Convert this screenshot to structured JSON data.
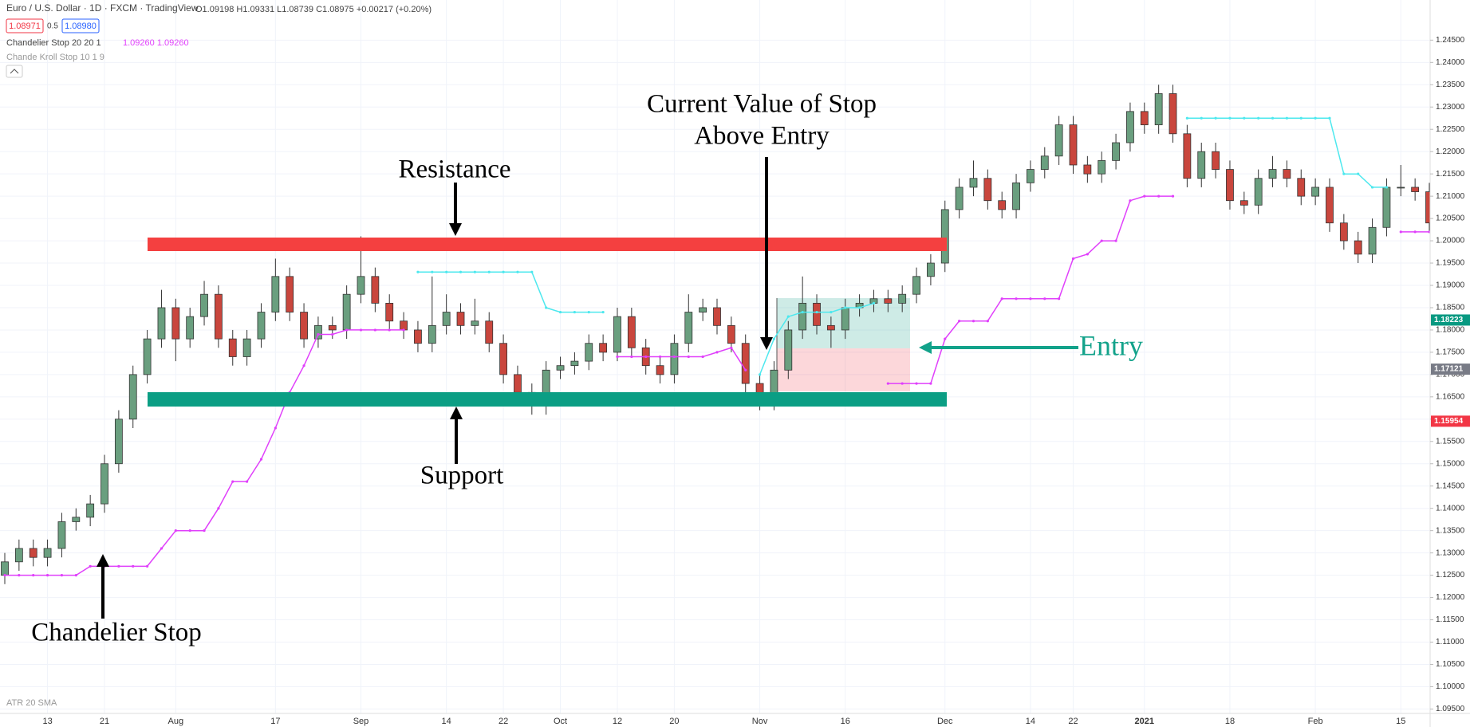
{
  "header": {
    "symbol": "Euro / U.S. Dollar · 1D · FXCM · TradingView",
    "ohlc": "O1.09198 H1.09331 L1.08739 C1.08975 +0.00217 (+0.20%)",
    "bid": "1.08971",
    "spread": "0.5",
    "ask": "1.08980"
  },
  "indicators": [
    "Chandelier Stop 20 20 1",
    "Chande Kroll Stop 10 1 9",
    "ATR 20 SMA"
  ],
  "indicator_values": "1.09260 1.09260",
  "annotations": [
    "Resistance",
    "Support",
    "Current Value of Stop",
    "Above Entry",
    "Entry",
    "Chandelier Stop"
  ],
  "chart_data": {
    "type": "candlestick",
    "up_color": "#6a9f7f",
    "down_color": "#c9463d",
    "grid": true,
    "ylim": [
      1.094,
      1.254
    ],
    "yticks": [
      {
        "value": 1.245,
        "label": "1.24500"
      },
      {
        "value": 1.24,
        "label": "1.24000"
      },
      {
        "value": 1.235,
        "label": "1.23500"
      },
      {
        "value": 1.23,
        "label": "1.23000"
      },
      {
        "value": 1.225,
        "label": "1.22500"
      },
      {
        "value": 1.22,
        "label": "1.22000"
      },
      {
        "value": 1.215,
        "label": "1.21500"
      },
      {
        "value": 1.21,
        "label": "1.21000"
      },
      {
        "value": 1.205,
        "label": "1.20500"
      },
      {
        "value": 1.2,
        "label": "1.20000"
      },
      {
        "value": 1.195,
        "label": "1.19500"
      },
      {
        "value": 1.19,
        "label": "1.19000"
      },
      {
        "value": 1.185,
        "label": "1.18500"
      },
      {
        "value": 1.18,
        "label": "1.18000"
      },
      {
        "value": 1.175,
        "label": "1.17500"
      },
      {
        "value": 1.17,
        "label": "1.17000"
      },
      {
        "value": 1.165,
        "label": "1.16500"
      },
      {
        "value": 1.16,
        "label": "1.16000"
      },
      {
        "value": 1.155,
        "label": "1.15500"
      },
      {
        "value": 1.15,
        "label": "1.15000"
      },
      {
        "value": 1.145,
        "label": "1.14500"
      },
      {
        "value": 1.14,
        "label": "1.14000"
      },
      {
        "value": 1.135,
        "label": "1.13500"
      },
      {
        "value": 1.13,
        "label": "1.13000"
      },
      {
        "value": 1.125,
        "label": "1.12500"
      },
      {
        "value": 1.12,
        "label": "1.12000"
      },
      {
        "value": 1.115,
        "label": "1.11500"
      },
      {
        "value": 1.11,
        "label": "1.11000"
      },
      {
        "value": 1.105,
        "label": "1.10500"
      },
      {
        "value": 1.1,
        "label": "1.10000"
      },
      {
        "value": 1.095,
        "label": "1.09500"
      }
    ],
    "xticks": [
      {
        "value": 3,
        "label": "13"
      },
      {
        "value": 7,
        "label": "21"
      },
      {
        "value": 12,
        "label": "Aug"
      },
      {
        "value": 19,
        "label": "17"
      },
      {
        "value": 25,
        "label": "Sep"
      },
      {
        "value": 31,
        "label": "14"
      },
      {
        "value": 35,
        "label": "22"
      },
      {
        "value": 39,
        "label": "Oct"
      },
      {
        "value": 43,
        "label": "12"
      },
      {
        "value": 47,
        "label": "20"
      },
      {
        "value": 53,
        "label": "Nov"
      },
      {
        "value": 59,
        "label": "16"
      },
      {
        "value": 66,
        "label": "Dec"
      },
      {
        "value": 72,
        "label": "14"
      },
      {
        "value": 75,
        "label": "22"
      },
      {
        "value": 80,
        "label": "2021"
      },
      {
        "value": 86,
        "label": "18"
      },
      {
        "value": 92,
        "label": "Feb"
      },
      {
        "value": 98,
        "label": "15"
      }
    ],
    "candles": [
      [
        1.125,
        1.13,
        1.123,
        1.128
      ],
      [
        1.128,
        1.133,
        1.126,
        1.131
      ],
      [
        1.131,
        1.133,
        1.127,
        1.129
      ],
      [
        1.129,
        1.133,
        1.127,
        1.131
      ],
      [
        1.131,
        1.139,
        1.129,
        1.137
      ],
      [
        1.137,
        1.14,
        1.135,
        1.138
      ],
      [
        1.138,
        1.143,
        1.136,
        1.141
      ],
      [
        1.141,
        1.152,
        1.139,
        1.15
      ],
      [
        1.15,
        1.162,
        1.148,
        1.16
      ],
      [
        1.16,
        1.172,
        1.158,
        1.17
      ],
      [
        1.17,
        1.18,
        1.168,
        1.178
      ],
      [
        1.178,
        1.189,
        1.176,
        1.185
      ],
      [
        1.185,
        1.187,
        1.173,
        1.178
      ],
      [
        1.178,
        1.185,
        1.176,
        1.183
      ],
      [
        1.183,
        1.191,
        1.181,
        1.188
      ],
      [
        1.188,
        1.19,
        1.176,
        1.178
      ],
      [
        1.178,
        1.18,
        1.172,
        1.174
      ],
      [
        1.174,
        1.18,
        1.172,
        1.178
      ],
      [
        1.178,
        1.186,
        1.176,
        1.184
      ],
      [
        1.184,
        1.196,
        1.182,
        1.192
      ],
      [
        1.192,
        1.194,
        1.182,
        1.184
      ],
      [
        1.184,
        1.186,
        1.176,
        1.178
      ],
      [
        1.178,
        1.183,
        1.176,
        1.181
      ],
      [
        1.181,
        1.183,
        1.178,
        1.18
      ],
      [
        1.18,
        1.19,
        1.178,
        1.188
      ],
      [
        1.188,
        1.201,
        1.186,
        1.192
      ],
      [
        1.192,
        1.194,
        1.184,
        1.186
      ],
      [
        1.186,
        1.188,
        1.18,
        1.182
      ],
      [
        1.182,
        1.184,
        1.178,
        1.18
      ],
      [
        1.18,
        1.182,
        1.175,
        1.177
      ],
      [
        1.177,
        1.192,
        1.175,
        1.181
      ],
      [
        1.181,
        1.188,
        1.179,
        1.184
      ],
      [
        1.184,
        1.186,
        1.179,
        1.181
      ],
      [
        1.181,
        1.187,
        1.179,
        1.182
      ],
      [
        1.182,
        1.184,
        1.175,
        1.177
      ],
      [
        1.177,
        1.179,
        1.168,
        1.17
      ],
      [
        1.17,
        1.172,
        1.164,
        1.166
      ],
      [
        1.166,
        1.168,
        1.161,
        1.163
      ],
      [
        1.163,
        1.173,
        1.161,
        1.171
      ],
      [
        1.171,
        1.174,
        1.169,
        1.172
      ],
      [
        1.172,
        1.175,
        1.17,
        1.173
      ],
      [
        1.173,
        1.179,
        1.171,
        1.177
      ],
      [
        1.177,
        1.179,
        1.173,
        1.175
      ],
      [
        1.175,
        1.185,
        1.173,
        1.183
      ],
      [
        1.183,
        1.185,
        1.174,
        1.176
      ],
      [
        1.176,
        1.178,
        1.17,
        1.172
      ],
      [
        1.172,
        1.174,
        1.168,
        1.17
      ],
      [
        1.17,
        1.179,
        1.168,
        1.177
      ],
      [
        1.177,
        1.188,
        1.175,
        1.184
      ],
      [
        1.184,
        1.187,
        1.182,
        1.185
      ],
      [
        1.185,
        1.187,
        1.179,
        1.181
      ],
      [
        1.181,
        1.183,
        1.175,
        1.177
      ],
      [
        1.177,
        1.179,
        1.166,
        1.168
      ],
      [
        1.168,
        1.17,
        1.162,
        1.164
      ],
      [
        1.164,
        1.173,
        1.162,
        1.171
      ],
      [
        1.171,
        1.182,
        1.169,
        1.18
      ],
      [
        1.18,
        1.192,
        1.178,
        1.186
      ],
      [
        1.186,
        1.188,
        1.179,
        1.181
      ],
      [
        1.181,
        1.183,
        1.176,
        1.18
      ],
      [
        1.18,
        1.187,
        1.178,
        1.185
      ],
      [
        1.185,
        1.188,
        1.183,
        1.186
      ],
      [
        1.186,
        1.189,
        1.184,
        1.187
      ],
      [
        1.187,
        1.189,
        1.184,
        1.186
      ],
      [
        1.186,
        1.19,
        1.184,
        1.188
      ],
      [
        1.188,
        1.194,
        1.186,
        1.192
      ],
      [
        1.192,
        1.197,
        1.19,
        1.195
      ],
      [
        1.195,
        1.209,
        1.193,
        1.207
      ],
      [
        1.207,
        1.214,
        1.205,
        1.212
      ],
      [
        1.212,
        1.218,
        1.21,
        1.214
      ],
      [
        1.214,
        1.216,
        1.207,
        1.209
      ],
      [
        1.209,
        1.211,
        1.205,
        1.207
      ],
      [
        1.207,
        1.215,
        1.205,
        1.213
      ],
      [
        1.213,
        1.218,
        1.211,
        1.216
      ],
      [
        1.216,
        1.221,
        1.214,
        1.219
      ],
      [
        1.219,
        1.228,
        1.217,
        1.226
      ],
      [
        1.226,
        1.228,
        1.215,
        1.217
      ],
      [
        1.217,
        1.219,
        1.213,
        1.215
      ],
      [
        1.215,
        1.22,
        1.213,
        1.218
      ],
      [
        1.218,
        1.224,
        1.216,
        1.222
      ],
      [
        1.222,
        1.231,
        1.22,
        1.229
      ],
      [
        1.229,
        1.231,
        1.224,
        1.226
      ],
      [
        1.226,
        1.235,
        1.224,
        1.233
      ],
      [
        1.233,
        1.235,
        1.222,
        1.224
      ],
      [
        1.224,
        1.226,
        1.212,
        1.214
      ],
      [
        1.214,
        1.222,
        1.212,
        1.22
      ],
      [
        1.22,
        1.222,
        1.214,
        1.216
      ],
      [
        1.216,
        1.218,
        1.207,
        1.209
      ],
      [
        1.209,
        1.211,
        1.206,
        1.208
      ],
      [
        1.208,
        1.216,
        1.206,
        1.214
      ],
      [
        1.214,
        1.219,
        1.212,
        1.216
      ],
      [
        1.216,
        1.218,
        1.212,
        1.214
      ],
      [
        1.214,
        1.216,
        1.208,
        1.21
      ],
      [
        1.21,
        1.214,
        1.208,
        1.212
      ],
      [
        1.212,
        1.214,
        1.202,
        1.204
      ],
      [
        1.204,
        1.206,
        1.198,
        1.2
      ],
      [
        1.2,
        1.202,
        1.195,
        1.197
      ],
      [
        1.197,
        1.205,
        1.195,
        1.203
      ],
      [
        1.203,
        1.214,
        1.201,
        1.212
      ],
      [
        1.212,
        1.217,
        1.21,
        1.212
      ],
      [
        1.212,
        1.214,
        1.209,
        1.211
      ],
      [
        1.211,
        1.213,
        1.202,
        1.204
      ]
    ],
    "series": [
      {
        "color": "#e040fb",
        "values": [
          1.125,
          1.125,
          1.125,
          1.125,
          1.125,
          1.125,
          1.127,
          1.127,
          1.127,
          1.127,
          1.127,
          1.131,
          1.135,
          1.135,
          1.135,
          1.14,
          1.146,
          1.146,
          1.151,
          1.158,
          1.166,
          1.172,
          1.179,
          1.179,
          1.18,
          1.18,
          1.18,
          1.18,
          1.18,
          null,
          null,
          null,
          null,
          null,
          null,
          null,
          null,
          null,
          null,
          null,
          null,
          null,
          null,
          1.174,
          1.174,
          1.174,
          1.174,
          1.174,
          1.174,
          1.174,
          1.175,
          1.176,
          1.171,
          null,
          null,
          null,
          null,
          null,
          null,
          null,
          null,
          null,
          1.168,
          1.168,
          1.168,
          1.168,
          1.178,
          1.182,
          1.182,
          1.182,
          1.187,
          1.187,
          1.187,
          1.187,
          1.187,
          1.196,
          1.197,
          1.2,
          1.2,
          1.209,
          1.21,
          1.21,
          1.21,
          null,
          null,
          null,
          null,
          null,
          null,
          null,
          null,
          null,
          null,
          null,
          null,
          null,
          null,
          null,
          1.202,
          1.202,
          1.202
        ]
      },
      {
        "color": "#4de8ee",
        "values": [
          null,
          null,
          null,
          null,
          null,
          null,
          null,
          null,
          null,
          null,
          null,
          null,
          null,
          null,
          null,
          null,
          null,
          null,
          null,
          null,
          null,
          null,
          null,
          null,
          null,
          null,
          null,
          null,
          null,
          1.193,
          1.193,
          1.193,
          1.193,
          1.193,
          1.193,
          1.193,
          1.193,
          1.193,
          1.185,
          1.184,
          1.184,
          1.184,
          1.184,
          null,
          null,
          null,
          null,
          null,
          null,
          null,
          null,
          null,
          null,
          1.17,
          1.178,
          1.183,
          1.184,
          1.184,
          1.184,
          1.185,
          1.185,
          1.186,
          null,
          null,
          null,
          null,
          null,
          null,
          null,
          null,
          null,
          null,
          null,
          null,
          null,
          null,
          null,
          null,
          null,
          null,
          null,
          null,
          null,
          1.2275,
          1.2275,
          1.2275,
          1.2275,
          1.2275,
          1.2275,
          1.2275,
          1.2275,
          1.2275,
          1.2275,
          1.2275,
          1.215,
          1.215,
          1.212,
          1.212,
          null,
          null,
          null
        ]
      }
    ],
    "price_labels": [
      {
        "value": 1.18223,
        "label": "1.18223",
        "color": "#089981"
      },
      {
        "value": 1.17121,
        "label": "1.17121",
        "color": "#787b86"
      },
      {
        "value": 1.15954,
        "label": "1.15954",
        "color": "#f23645"
      }
    ]
  }
}
